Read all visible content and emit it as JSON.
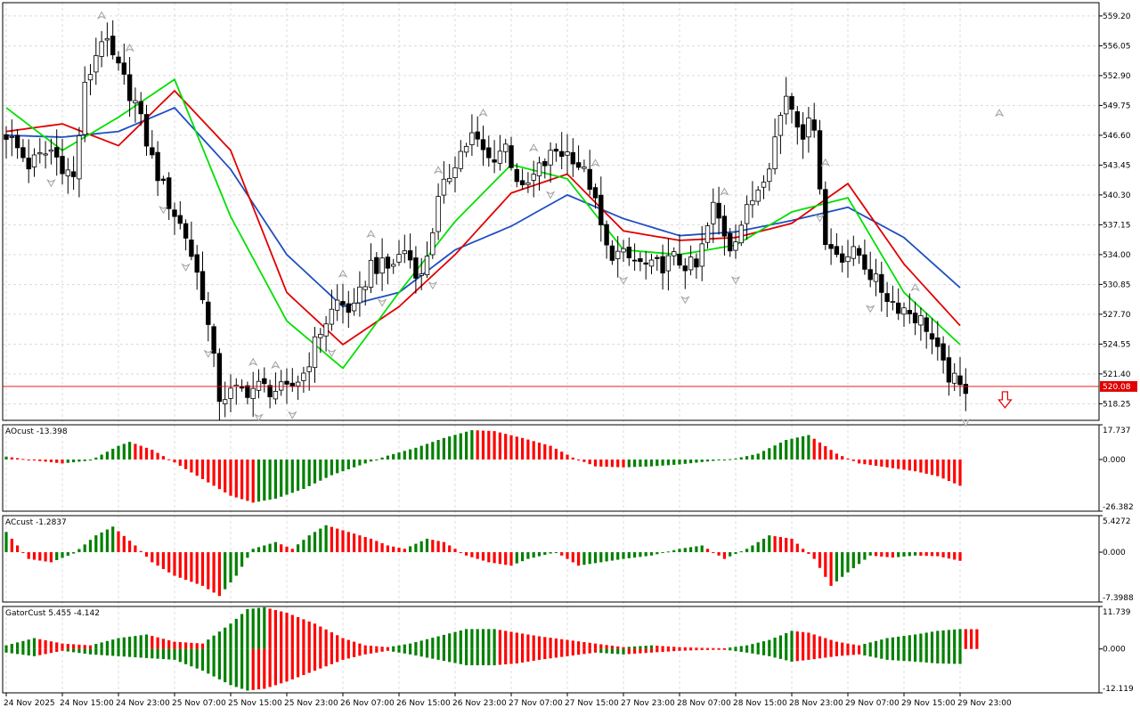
{
  "chart_data": [
    {
      "panel": "price",
      "type": "candlestick",
      "title": "",
      "last_price_label": "520.08",
      "ylim": [
        516.5,
        560.6
      ],
      "y_ticks": [
        "559.20",
        "556.05",
        "552.90",
        "549.75",
        "546.60",
        "543.45",
        "540.30",
        "537.15",
        "534.00",
        "530.85",
        "527.70",
        "524.55",
        "521.40",
        "518.25"
      ],
      "y_tick_values": [
        559.2,
        556.05,
        552.9,
        549.75,
        546.6,
        543.45,
        540.3,
        537.15,
        534.0,
        530.85,
        527.7,
        524.55,
        521.4,
        518.25
      ],
      "x_ticks": [
        "24 Nov 2025",
        "24 Nov 15:00",
        "24 Nov 23:00",
        "25 Nov 07:00",
        "25 Nov 15:00",
        "25 Nov 23:00",
        "26 Nov 07:00",
        "26 Nov 15:00",
        "26 Nov 23:00",
        "27 Nov 07:00",
        "27 Nov 15:00",
        "27 Nov 23:00",
        "28 Nov 07:00",
        "28 Nov 15:00",
        "28 Nov 23:00",
        "29 Nov 07:00",
        "29 Nov 15:00",
        "29 Nov 23:00"
      ],
      "grid": true,
      "colors": {
        "jaw": "#1f4fc0",
        "teeth": "#e00000",
        "lips": "#00e000",
        "up_candle": "#ffffff",
        "down_candle": "#000000",
        "price_line": "#e00000",
        "fractal": "#a0a0a0",
        "signal_arrow": "#e00000"
      },
      "close_keypoints": [
        [
          0,
          546.8
        ],
        [
          4,
          543.5
        ],
        [
          8,
          545.0
        ],
        [
          12,
          542.0
        ],
        [
          14,
          551.5
        ],
        [
          17,
          557.0
        ],
        [
          20,
          553.5
        ],
        [
          23,
          550.0
        ],
        [
          26,
          544.0
        ],
        [
          29,
          539.5
        ],
        [
          32,
          536.0
        ],
        [
          35,
          530.0
        ],
        [
          38,
          519.0
        ],
        [
          41,
          519.5
        ],
        [
          45,
          520.0
        ],
        [
          50,
          519.5
        ],
        [
          53,
          521.5
        ],
        [
          56,
          526.0
        ],
        [
          59,
          529.0
        ],
        [
          62,
          528.0
        ],
        [
          65,
          533.0
        ],
        [
          68,
          532.5
        ],
        [
          71,
          534.5
        ],
        [
          74,
          531.5
        ],
        [
          77,
          539.5
        ],
        [
          80,
          544.0
        ],
        [
          83,
          546.5
        ],
        [
          86,
          544.0
        ],
        [
          89,
          545.5
        ],
        [
          92,
          540.5
        ],
        [
          95,
          543.0
        ],
        [
          98,
          545.0
        ],
        [
          101,
          544.5
        ],
        [
          104,
          541.5
        ],
        [
          107,
          534.5
        ],
        [
          111,
          533.5
        ],
        [
          115,
          532.5
        ],
        [
          119,
          533.5
        ],
        [
          123,
          532.5
        ],
        [
          126,
          539.0
        ],
        [
          129,
          535.0
        ],
        [
          132,
          538.5
        ],
        [
          136,
          544.0
        ],
        [
          139,
          551.0
        ],
        [
          142,
          547.0
        ],
        [
          144,
          548.0
        ],
        [
          146,
          535.0
        ],
        [
          149,
          534.0
        ],
        [
          152,
          534.0
        ],
        [
          155,
          531.0
        ],
        [
          158,
          529.0
        ],
        [
          161,
          528.0
        ],
        [
          164,
          526.5
        ],
        [
          167,
          522.0
        ],
        [
          170,
          519.8
        ],
        [
          171,
          520.08
        ]
      ],
      "series": [
        {
          "name": "",
          "role": "jaw",
          "x": [
            0,
            10,
            20,
            30,
            40,
            50,
            60,
            70,
            80,
            90,
            100,
            110,
            120,
            130,
            140,
            150,
            160,
            170
          ],
          "values": [
            546.6,
            546.4,
            547.0,
            549.5,
            543.0,
            534.0,
            528.5,
            530.0,
            534.5,
            537.0,
            540.3,
            537.8,
            536.0,
            536.4,
            537.6,
            539.0,
            535.8,
            530.5
          ]
        },
        {
          "name": "",
          "role": "teeth",
          "x": [
            0,
            10,
            20,
            30,
            40,
            50,
            60,
            70,
            80,
            90,
            100,
            110,
            120,
            130,
            140,
            150,
            160,
            170
          ],
          "values": [
            547.0,
            547.8,
            545.5,
            551.3,
            545.0,
            530.0,
            524.5,
            528.5,
            534.0,
            540.5,
            542.5,
            536.5,
            535.5,
            535.8,
            537.3,
            541.5,
            533.0,
            526.5
          ]
        },
        {
          "name": "",
          "role": "lips",
          "x": [
            0,
            10,
            20,
            30,
            40,
            50,
            60,
            70,
            80,
            90,
            100,
            110,
            120,
            130,
            140,
            150,
            160,
            170
          ],
          "values": [
            549.5,
            545.0,
            548.5,
            552.5,
            538.0,
            527.0,
            522.0,
            530.0,
            537.5,
            543.5,
            542.0,
            534.5,
            534.0,
            535.0,
            538.5,
            540.0,
            530.0,
            524.5
          ]
        }
      ],
      "fractals_up": [
        17,
        22,
        44,
        48,
        60,
        65,
        77,
        85,
        94,
        105,
        128,
        146,
        162,
        177
      ],
      "fractals_down": [
        8,
        28,
        32,
        36,
        45,
        51,
        58,
        67,
        76,
        97,
        110,
        121,
        130,
        145,
        154,
        171
      ]
    },
    {
      "panel": "indicator",
      "label": "AOcust -13.398",
      "type": "histogram",
      "y_ticks": [
        "17.737",
        "0.000",
        "-26.382"
      ],
      "ylim": [
        -26.382,
        17.737
      ],
      "colors": {
        "up": "#008000",
        "down": "#ff0000"
      },
      "keypoints": [
        [
          0,
          1.5
        ],
        [
          5,
          -0.5
        ],
        [
          10,
          -2.0
        ],
        [
          15,
          -0.5
        ],
        [
          20,
          7.0
        ],
        [
          22,
          9.0
        ],
        [
          26,
          5.0
        ],
        [
          30,
          -1.5
        ],
        [
          35,
          -10.0
        ],
        [
          40,
          -18.5
        ],
        [
          44,
          -22.0
        ],
        [
          48,
          -20.0
        ],
        [
          53,
          -15.0
        ],
        [
          58,
          -8.0
        ],
        [
          63,
          -3.0
        ],
        [
          68,
          2.0
        ],
        [
          73,
          6.0
        ],
        [
          78,
          11.0
        ],
        [
          83,
          15.0
        ],
        [
          87,
          14.5
        ],
        [
          92,
          11.0
        ],
        [
          97,
          7.0
        ],
        [
          101,
          1.0
        ],
        [
          105,
          -3.5
        ],
        [
          110,
          -4.0
        ],
        [
          115,
          -3.5
        ],
        [
          120,
          -2.5
        ],
        [
          125,
          -1.0
        ],
        [
          130,
          0.5
        ],
        [
          134,
          3.0
        ],
        [
          139,
          10.0
        ],
        [
          143,
          12.5
        ],
        [
          148,
          3.0
        ],
        [
          152,
          -2.0
        ],
        [
          157,
          -4.0
        ],
        [
          162,
          -6.0
        ],
        [
          166,
          -8.5
        ],
        [
          170,
          -13.4
        ]
      ]
    },
    {
      "panel": "indicator",
      "label": "ACcust -1.2837",
      "type": "histogram",
      "y_ticks": [
        "5.4272",
        "0.000",
        "-7.3988"
      ],
      "ylim": [
        -7.3988,
        5.4272
      ],
      "colors": {
        "up": "#008000",
        "down": "#ff0000"
      },
      "keypoints": [
        [
          0,
          3.0
        ],
        [
          4,
          -1.0
        ],
        [
          8,
          -1.5
        ],
        [
          12,
          -0.2
        ],
        [
          16,
          2.5
        ],
        [
          19,
          3.8
        ],
        [
          23,
          1.0
        ],
        [
          26,
          -1.5
        ],
        [
          30,
          -3.5
        ],
        [
          35,
          -5.0
        ],
        [
          38,
          -6.5
        ],
        [
          41,
          -3.5
        ],
        [
          44,
          0.5
        ],
        [
          48,
          1.5
        ],
        [
          51,
          0.5
        ],
        [
          54,
          2.5
        ],
        [
          57,
          4.0
        ],
        [
          61,
          3.0
        ],
        [
          65,
          2.0
        ],
        [
          68,
          1.0
        ],
        [
          71,
          0.5
        ],
        [
          75,
          2.0
        ],
        [
          78,
          1.5
        ],
        [
          82,
          -0.5
        ],
        [
          86,
          -1.5
        ],
        [
          90,
          -2.0
        ],
        [
          93,
          -1.0
        ],
        [
          98,
          0.0
        ],
        [
          102,
          -2.0
        ],
        [
          106,
          -1.5
        ],
        [
          110,
          -1.0
        ],
        [
          115,
          -0.5
        ],
        [
          120,
          0.5
        ],
        [
          124,
          1.0
        ],
        [
          128,
          -1.0
        ],
        [
          132,
          0.5
        ],
        [
          136,
          2.5
        ],
        [
          140,
          2.0
        ],
        [
          144,
          -1.0
        ],
        [
          147,
          -5.0
        ],
        [
          150,
          -3.0
        ],
        [
          154,
          -0.5
        ],
        [
          158,
          -0.8
        ],
        [
          162,
          -0.5
        ],
        [
          166,
          -0.6
        ],
        [
          170,
          -1.28
        ]
      ]
    },
    {
      "panel": "indicator",
      "label": "GatorCust 5.455 -4.142",
      "type": "gator",
      "y_ticks": [
        "11.739",
        "0.000",
        "-12.119"
      ],
      "ylim": [
        -12.119,
        11.739
      ],
      "colors": {
        "up": "#008000",
        "down": "#ff0000"
      },
      "upper_keypoints": [
        [
          0,
          1.0
        ],
        [
          5,
          3.0
        ],
        [
          10,
          1.5
        ],
        [
          15,
          1.0
        ],
        [
          20,
          3.0
        ],
        [
          25,
          4.0
        ],
        [
          30,
          2.0
        ],
        [
          35,
          1.5
        ],
        [
          40,
          7.0
        ],
        [
          43,
          11.0
        ],
        [
          46,
          11.5
        ],
        [
          50,
          10.0
        ],
        [
          55,
          7.0
        ],
        [
          60,
          3.0
        ],
        [
          64,
          1.0
        ],
        [
          68,
          0.5
        ],
        [
          72,
          1.5
        ],
        [
          77,
          3.5
        ],
        [
          82,
          5.5
        ],
        [
          87,
          5.5
        ],
        [
          91,
          4.5
        ],
        [
          95,
          3.5
        ],
        [
          100,
          2.5
        ],
        [
          105,
          1.5
        ],
        [
          110,
          0.5
        ],
        [
          115,
          1.0
        ],
        [
          120,
          0.5
        ],
        [
          124,
          0.3
        ],
        [
          128,
          0.2
        ],
        [
          132,
          1.0
        ],
        [
          136,
          2.5
        ],
        [
          140,
          5.0
        ],
        [
          143,
          4.5
        ],
        [
          148,
          2.0
        ],
        [
          152,
          1.0
        ],
        [
          157,
          3.0
        ],
        [
          162,
          4.0
        ],
        [
          166,
          5.0
        ],
        [
          170,
          5.5
        ],
        [
          173,
          5.455
        ]
      ],
      "lower_keypoints": [
        [
          0,
          -1.0
        ],
        [
          5,
          -2.0
        ],
        [
          10,
          -0.5
        ],
        [
          15,
          -1.5
        ],
        [
          20,
          -2.0
        ],
        [
          25,
          -2.5
        ],
        [
          30,
          -3.0
        ],
        [
          35,
          -6.0
        ],
        [
          40,
          -10.0
        ],
        [
          43,
          -11.5
        ],
        [
          46,
          -11.0
        ],
        [
          50,
          -9.0
        ],
        [
          55,
          -6.0
        ],
        [
          60,
          -3.0
        ],
        [
          64,
          -1.5
        ],
        [
          68,
          -0.5
        ],
        [
          72,
          -1.5
        ],
        [
          77,
          -3.0
        ],
        [
          82,
          -4.5
        ],
        [
          87,
          -4.5
        ],
        [
          91,
          -4.0
        ],
        [
          95,
          -3.0
        ],
        [
          100,
          -2.0
        ],
        [
          105,
          -1.0
        ],
        [
          110,
          -1.5
        ],
        [
          115,
          -1.0
        ],
        [
          120,
          -0.5
        ],
        [
          124,
          -0.3
        ],
        [
          128,
          -0.2
        ],
        [
          132,
          -1.0
        ],
        [
          136,
          -2.0
        ],
        [
          140,
          -3.5
        ],
        [
          143,
          -3.0
        ],
        [
          148,
          -2.0
        ],
        [
          152,
          -1.5
        ],
        [
          157,
          -3.0
        ],
        [
          162,
          -3.5
        ],
        [
          166,
          -4.0
        ],
        [
          170,
          -4.142
        ]
      ]
    }
  ]
}
